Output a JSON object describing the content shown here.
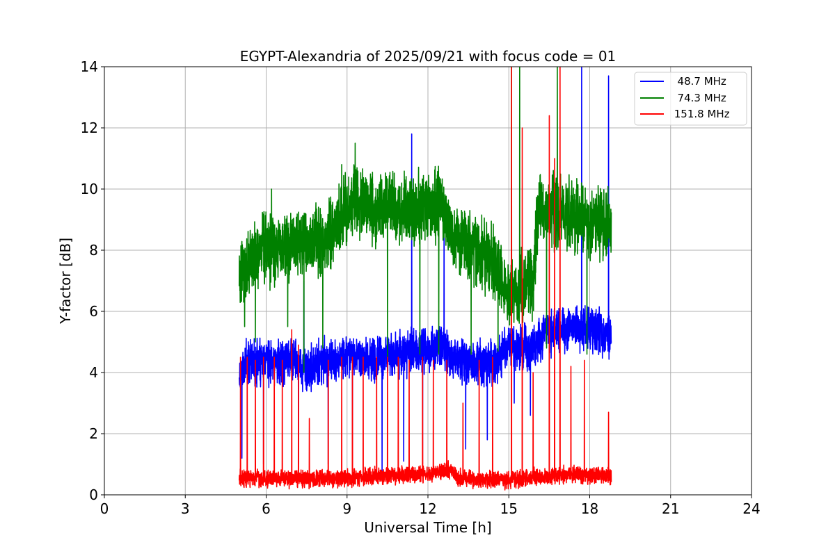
{
  "chart_data": {
    "type": "line",
    "title": "EGYPT-Alexandria of 2025/09/21 with focus code = 01",
    "xlabel": "Universal Time [h]",
    "ylabel": "Y-factor [dB]",
    "xlim": [
      0,
      24
    ],
    "ylim": [
      0,
      14
    ],
    "xticks": [
      0,
      3,
      6,
      9,
      12,
      15,
      18,
      21,
      24
    ],
    "yticks": [
      0,
      2,
      4,
      6,
      8,
      10,
      12,
      14
    ],
    "grid": true,
    "legend_position": "top-right",
    "series": [
      {
        "name": "  48.7 MHz",
        "color": "#0000ff",
        "noise": 0.9,
        "x": [
          5.0,
          5.3,
          6.0,
          7.0,
          7.5,
          8.0,
          9.0,
          10.0,
          11.0,
          12.0,
          12.5,
          13.0,
          13.5,
          14.0,
          14.5,
          15.0,
          15.5,
          16.0,
          16.5,
          17.0,
          17.5,
          18.0,
          18.5,
          18.8
        ],
        "y": [
          4.0,
          4.3,
          4.3,
          4.4,
          4.0,
          4.3,
          4.5,
          4.4,
          4.6,
          4.8,
          4.8,
          4.5,
          4.4,
          4.3,
          4.4,
          4.8,
          4.8,
          5.0,
          5.3,
          5.4,
          5.5,
          5.4,
          5.3,
          5.2
        ],
        "spikes": [
          [
            5.1,
            1.2
          ],
          [
            5.9,
            1.0
          ],
          [
            7.2,
            1.0
          ],
          [
            7.4,
            7.0
          ],
          [
            8.3,
            1.0
          ],
          [
            9.2,
            0.5
          ],
          [
            10.3,
            0.5
          ],
          [
            11.1,
            1.1
          ],
          [
            11.4,
            11.8
          ],
          [
            11.8,
            1.0
          ],
          [
            12.6,
            9.5
          ],
          [
            13.4,
            1.5
          ],
          [
            14.2,
            1.8
          ],
          [
            15.2,
            3.0
          ],
          [
            15.8,
            2.6
          ],
          [
            17.7,
            14.0
          ],
          [
            18.7,
            13.7
          ]
        ]
      },
      {
        "name": "  74.3 MHz",
        "color": "#008000",
        "noise": 1.4,
        "x": [
          5.0,
          5.5,
          6.0,
          6.5,
          7.0,
          7.5,
          8.0,
          8.5,
          9.0,
          9.5,
          10.0,
          10.5,
          11.0,
          11.5,
          12.0,
          12.5,
          13.0,
          13.5,
          14.0,
          14.5,
          15.0,
          15.5,
          15.9,
          16.1,
          16.5,
          17.0,
          17.5,
          18.0,
          18.5,
          18.8
        ],
        "y": [
          7.3,
          7.8,
          8.0,
          8.2,
          8.2,
          8.2,
          8.4,
          8.6,
          9.5,
          9.6,
          9.3,
          9.4,
          9.3,
          9.4,
          9.4,
          9.5,
          8.3,
          8.2,
          7.8,
          7.6,
          6.7,
          6.8,
          6.9,
          9.5,
          9.3,
          9.2,
          9.1,
          8.9,
          8.9,
          8.9
        ],
        "spikes": [
          [
            5.2,
            5.5
          ],
          [
            5.6,
            5.0
          ],
          [
            6.2,
            10.0
          ],
          [
            6.8,
            5.5
          ],
          [
            7.4,
            4.0
          ],
          [
            8.1,
            4.8
          ],
          [
            8.8,
            10.8
          ],
          [
            9.3,
            11.5
          ],
          [
            10.5,
            4.5
          ],
          [
            11.7,
            4.6
          ],
          [
            12.4,
            4.6
          ],
          [
            13.6,
            4.6
          ],
          [
            14.6,
            4.7
          ],
          [
            15.1,
            14.0
          ],
          [
            15.4,
            14.0
          ],
          [
            16.4,
            4.8
          ],
          [
            16.8,
            14.0
          ],
          [
            17.9,
            4.6
          ]
        ]
      },
      {
        "name": " 151.8 MHz",
        "color": "#ff0000",
        "noise": 0.35,
        "x": [
          5.0,
          6.0,
          7.0,
          8.0,
          9.0,
          10.0,
          11.0,
          12.0,
          12.9,
          13.1,
          14.0,
          15.0,
          16.0,
          17.0,
          18.0,
          18.8
        ],
        "y": [
          0.55,
          0.5,
          0.5,
          0.55,
          0.55,
          0.6,
          0.65,
          0.7,
          0.8,
          0.55,
          0.5,
          0.5,
          0.6,
          0.65,
          0.65,
          0.6
        ],
        "spikes": [
          [
            5.05,
            4.5
          ],
          [
            5.3,
            4.5
          ],
          [
            5.6,
            4.4
          ],
          [
            5.9,
            4.5
          ],
          [
            6.3,
            4.5
          ],
          [
            6.6,
            4.4
          ],
          [
            6.95,
            5.4
          ],
          [
            7.2,
            4.9
          ],
          [
            7.6,
            2.5
          ],
          [
            8.3,
            4.4
          ],
          [
            8.8,
            4.5
          ],
          [
            9.2,
            4.5
          ],
          [
            9.6,
            4.5
          ],
          [
            10.1,
            4.5
          ],
          [
            10.5,
            4.5
          ],
          [
            10.9,
            4.5
          ],
          [
            11.3,
            4.4
          ],
          [
            11.8,
            4.5
          ],
          [
            12.2,
            4.4
          ],
          [
            12.7,
            4.4
          ],
          [
            13.3,
            3.0
          ],
          [
            13.9,
            4.4
          ],
          [
            14.4,
            4.5
          ],
          [
            15.1,
            14.0
          ],
          [
            15.5,
            12.0
          ],
          [
            15.9,
            4.0
          ],
          [
            16.5,
            12.4
          ],
          [
            16.7,
            11.0
          ],
          [
            16.9,
            14.0
          ],
          [
            17.3,
            4.2
          ],
          [
            17.8,
            4.4
          ],
          [
            18.7,
            2.7
          ]
        ]
      }
    ]
  }
}
